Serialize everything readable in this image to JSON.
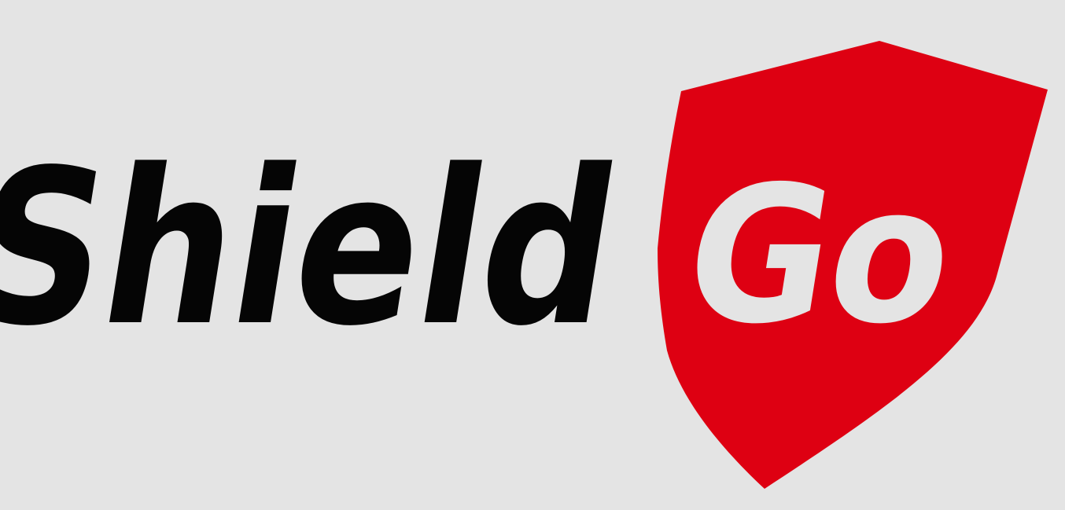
{
  "logo": {
    "word_primary": "Shield",
    "word_badge": "Go"
  },
  "colors": {
    "background": "#e4e4e4",
    "primary_text": "#050505",
    "badge_fill": "#de0012",
    "badge_text": "#e4e4e4"
  },
  "icons": {
    "badge_shape": "shield-icon"
  }
}
